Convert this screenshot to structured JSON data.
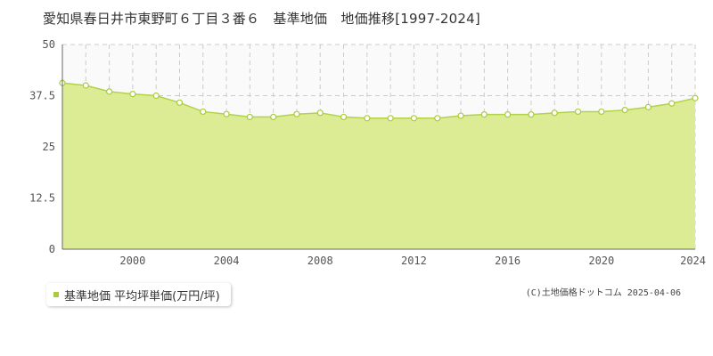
{
  "title": "愛知県春日井市東野町６丁目３番６　基準地価　地価推移[1997-2024]",
  "legend_label": "基準地価 平均坪単価(万円/坪)",
  "credit": "(C)土地価格ドットコム 2025-04-06",
  "colors": {
    "fill": "#dcec94",
    "line": "#b2d24a",
    "marker_fill": "#ffffff",
    "marker_stroke": "#a8cc3c",
    "legend": "#a8cc3c"
  },
  "chart_data": {
    "type": "area",
    "title": "愛知県春日井市東野町６丁目３番６　基準地価　地価推移[1997-2024]",
    "x": [
      1997,
      1998,
      1999,
      2000,
      2001,
      2002,
      2003,
      2004,
      2005,
      2006,
      2007,
      2008,
      2009,
      2010,
      2011,
      2012,
      2013,
      2014,
      2015,
      2016,
      2017,
      2018,
      2019,
      2020,
      2021,
      2022,
      2023,
      2024
    ],
    "series": [
      {
        "name": "基準地価 平均坪単価(万円/坪)",
        "values": [
          40.6,
          40.0,
          38.5,
          37.9,
          37.5,
          35.8,
          33.6,
          33.0,
          32.3,
          32.3,
          33.0,
          33.3,
          32.3,
          32.0,
          32.0,
          32.0,
          32.0,
          32.6,
          32.9,
          32.9,
          32.9,
          33.3,
          33.6,
          33.6,
          34.0,
          34.7,
          35.6,
          36.9
        ]
      }
    ],
    "xticks": [
      2000,
      2004,
      2008,
      2012,
      2016,
      2020,
      2024
    ],
    "xtick_labels": [
      "2000",
      "2004",
      "2008",
      "2012",
      "2016",
      "2020",
      "2024"
    ],
    "yticks": [
      0,
      12.5,
      25,
      37.5,
      50
    ],
    "ytick_labels": [
      "0",
      "12.5",
      "25",
      "37.5",
      "50"
    ],
    "xlim": [
      1997,
      2024
    ],
    "ylim": [
      0,
      50
    ],
    "xlabel": "",
    "ylabel": "",
    "grid": true,
    "legend_position": "bottom-left"
  }
}
